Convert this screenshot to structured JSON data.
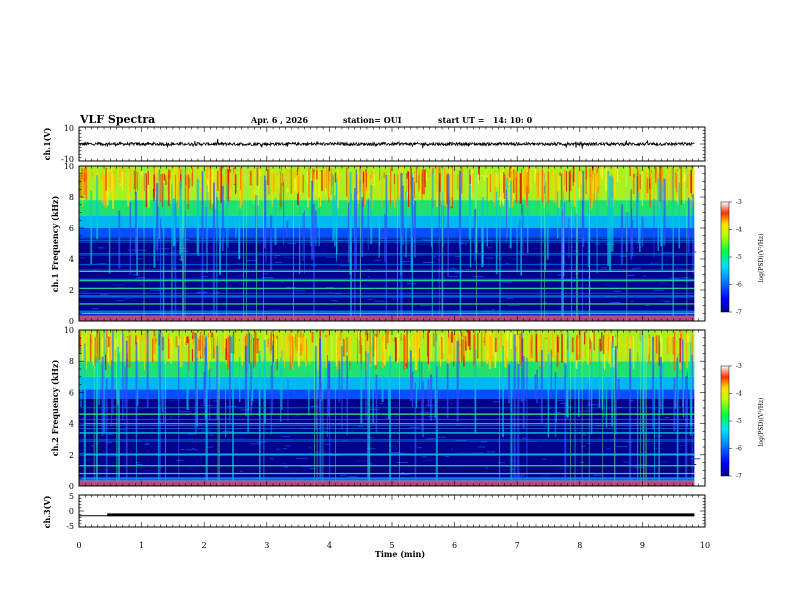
{
  "header": {
    "title": "VLF Spectra",
    "date": "Apr. 6 , 2026",
    "station": "station= OUI",
    "start": "start UT =   14: 10: 0"
  },
  "chart_data": [
    {
      "type": "line",
      "panel": "ch1_waveform",
      "ylabel": "ch.1(V)",
      "ylim": [
        -10,
        10
      ],
      "yticks": [
        10,
        -10
      ],
      "x_range_min": [
        0,
        9.83
      ],
      "baseline_v": 0,
      "color": "#000000"
    },
    {
      "type": "heatmap",
      "panel": "ch1_spectrogram",
      "ylabel": "ch.1 Frequency (kHz)",
      "xlim": [
        0,
        10
      ],
      "ylim": [
        0,
        10
      ],
      "yticks": [
        0,
        2,
        4,
        6,
        8,
        10
      ],
      "data_x_range_min": [
        0,
        9.83
      ],
      "colorbar": {
        "label": "log(PSD)(V²/Hz)",
        "range": [
          -7,
          -3
        ],
        "ticks": [
          "-3",
          "-4",
          "-5",
          "-6",
          "-7"
        ]
      },
      "dark_band_khz": [
        0.5,
        5.4
      ],
      "strong_lines_khz": [
        0.5,
        1.1,
        2.1,
        2.6,
        3.2
      ]
    },
    {
      "type": "heatmap",
      "panel": "ch2_spectrogram",
      "ylabel": "ch.2 Frequency (kHz)",
      "xlim": [
        0,
        10
      ],
      "ylim": [
        0,
        10
      ],
      "yticks": [
        0,
        2,
        4,
        6,
        8,
        10
      ],
      "data_x_range_min": [
        0,
        9.83
      ],
      "colorbar": {
        "label": "log(PSD)(V²/Hz)",
        "range": [
          -7,
          -3
        ],
        "ticks": [
          "-3",
          "-4",
          "-5",
          "-6",
          "-7"
        ]
      },
      "dark_band_khz": [
        0.5,
        5.6
      ],
      "strong_lines_khz": [
        0.8,
        1.3,
        2.0,
        3.4,
        4.0,
        4.6
      ]
    },
    {
      "type": "line",
      "panel": "ch3_level",
      "ylabel": "ch.3(V)",
      "ylim": [
        -5,
        5
      ],
      "yticks": [
        "5",
        "0",
        "-5"
      ],
      "xlabel": "Time (min)",
      "xticks": [
        "0",
        "1",
        "2",
        "3",
        "4",
        "5",
        "6",
        "7",
        "8",
        "9",
        "10"
      ],
      "segments": [
        {
          "x": [
            0,
            0.45
          ],
          "y": [
            -1.5,
            -1.5
          ]
        },
        {
          "x": [
            0.45,
            9.83
          ],
          "y": [
            -1.2,
            -1.2
          ]
        }
      ]
    }
  ]
}
